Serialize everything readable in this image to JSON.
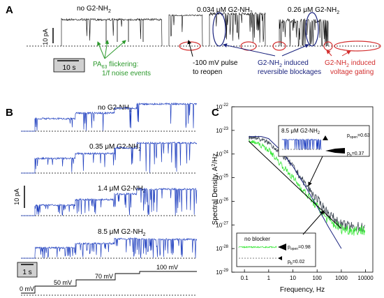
{
  "panels": {
    "A": {
      "letter": "A",
      "cond_none": "no G2-NH",
      "cond_low": "0.034 μM G2-NH",
      "cond_high": "0.26 μM G2-NH",
      "sub2": "2",
      "scale_current": "10 pA",
      "scale_time": "10 s",
      "ann_flicker_1": "PA",
      "ann_flicker_sub": "63",
      "ann_flicker_2": " flickering:",
      "ann_flicker_3": "1/f noise events",
      "ann_pulse_1": "-100 mV pulse",
      "ann_pulse_2": "to reopen",
      "ann_block_1": "G2-NH",
      "ann_block_1b": " induced",
      "ann_block_2": "reversible blockages",
      "ann_gate_1": "G2-NH",
      "ann_gate_1b": " induced",
      "ann_gate_2": "voltage gating",
      "colors": {
        "green": "#2e9a2e",
        "navy": "#1a237e",
        "red": "#d32f2f"
      }
    },
    "B": {
      "letter": "B",
      "traces": [
        {
          "label": "no G2-NH",
          "sub": "2"
        },
        {
          "label": "0.35 μM G2-NH",
          "sub": "2"
        },
        {
          "label": "1.4 μM G2-NH",
          "sub": "2"
        },
        {
          "label": "8.5 μM G2-NH",
          "sub": "2"
        }
      ],
      "scale_current": "10 pA",
      "scale_time": "1 s",
      "voltages": [
        "0 mV",
        "50 mV",
        "70 mV",
        "100 mV"
      ],
      "trace_color": "#1f3fbf"
    },
    "C": {
      "letter": "C",
      "ylabel_1": "Spectral Density, A",
      "ylabel_sup": "2",
      "ylabel_2": "/Hz",
      "xlabel": "Frequency, Hz",
      "y_ticks": [
        {
          "base": "10",
          "exp": "-22"
        },
        {
          "base": "10",
          "exp": "-23"
        },
        {
          "base": "10",
          "exp": "-24"
        },
        {
          "base": "10",
          "exp": "-25"
        },
        {
          "base": "10",
          "exp": "-26"
        },
        {
          "base": "10",
          "exp": "-27"
        },
        {
          "base": "10",
          "exp": "-28"
        },
        {
          "base": "10",
          "exp": "-29"
        }
      ],
      "x_ticks": [
        "0.1",
        "1",
        "10",
        "100",
        "1000",
        "10000"
      ],
      "inset_top": {
        "label": "8.5 μM G2-NH",
        "sub": "2",
        "p_open_1": "p",
        "p_open_sub": "open",
        "p_open_2": "=0.63",
        "p_b_1": "p",
        "p_b_sub": "b",
        "p_b_2": "=0.37"
      },
      "inset_bottom": {
        "label": "no blocker",
        "p_open_1": "p",
        "p_open_sub": "open",
        "p_open_2": "=0.98",
        "p_b_1": "p",
        "p_b_sub": "b",
        "p_b_2": "=0.02"
      }
    }
  },
  "chart_data": {
    "type": "line",
    "xlabel": "Frequency, Hz",
    "ylabel": "Spectral Density, A^2/Hz",
    "x_scale": "log",
    "y_scale": "log",
    "xlim": [
      0.03,
      20000
    ],
    "ylim": [
      1e-29,
      1e-22
    ],
    "series": [
      {
        "name": "8.5 μM G2-NH2",
        "color": "#3a4450",
        "x": [
          0.15,
          0.3,
          1,
          3,
          10,
          30,
          100,
          300,
          1000,
          3000,
          10000
        ],
        "y": [
          5e-24,
          5e-24,
          3e-24,
          1.2e-24,
          3e-25,
          6e-26,
          1.2e-26,
          3e-27,
          1e-27,
          8e-28,
          8e-28
        ]
      },
      {
        "name": "no blocker",
        "color": "#33e633",
        "x": [
          0.15,
          0.3,
          1,
          3,
          10,
          30,
          100,
          300,
          1000,
          3000,
          10000
        ],
        "y": [
          3.5e-24,
          3e-24,
          1.5e-24,
          4e-25,
          1e-25,
          2.5e-26,
          6e-27,
          1.5e-27,
          7e-28,
          6e-28,
          6e-28
        ]
      }
    ],
    "fits": [
      {
        "type": "lorentzian",
        "color": "#1a237e",
        "x": [
          0.15,
          0.5,
          1,
          3,
          10,
          30,
          100,
          300,
          1000
        ],
        "y": [
          5.5e-24,
          5.5e-24,
          4.5e-24,
          1.5e-24,
          3e-25,
          5e-26,
          6e-27,
          8e-28,
          1e-28
        ]
      },
      {
        "type": "1/f",
        "color": "#000000",
        "x": [
          0.15,
          10,
          1000
        ],
        "y": [
          3.5e-24,
          6e-26,
          7e-28
        ]
      }
    ]
  }
}
